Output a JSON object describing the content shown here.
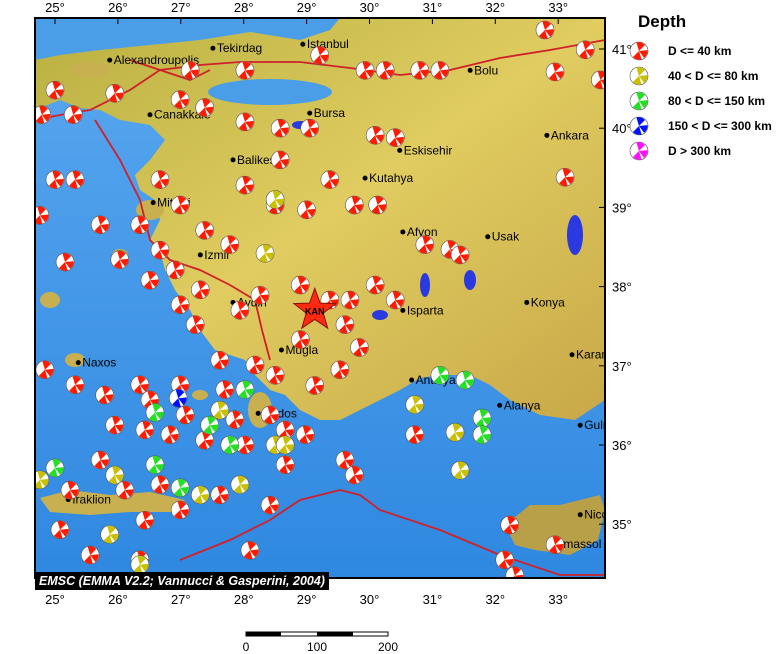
{
  "map": {
    "lon_range": [
      24.68,
      33.74
    ],
    "lat_range": [
      34.2,
      41.38
    ],
    "lon_ticks": [
      "25°",
      "26°",
      "27°",
      "28°",
      "29°",
      "30°",
      "31°",
      "32°",
      "33°"
    ],
    "lat_ticks": [
      "41°",
      "40°",
      "39°",
      "38°",
      "37°",
      "36°",
      "35°"
    ],
    "land_color": "#d9c45a",
    "sea_color": "#3f9be8",
    "fault_color": "#d0202a",
    "epicenter": {
      "label": "KAN",
      "lon": 29.13,
      "lat": 37.7,
      "color": "#ff2a10"
    },
    "cities": [
      {
        "name": "Alexandroupolis",
        "lon": 25.87,
        "lat": 40.86
      },
      {
        "name": "Tekirdag",
        "lon": 27.51,
        "lat": 41.01
      },
      {
        "name": "Istanbul",
        "lon": 28.94,
        "lat": 41.06
      },
      {
        "name": "Bolu",
        "lon": 31.6,
        "lat": 40.73
      },
      {
        "name": "Canakkale",
        "lon": 26.51,
        "lat": 40.17
      },
      {
        "name": "Bursa",
        "lon": 29.05,
        "lat": 40.19
      },
      {
        "name": "Eskisehir",
        "lon": 30.48,
        "lat": 39.72
      },
      {
        "name": "Ankara",
        "lon": 32.82,
        "lat": 39.91
      },
      {
        "name": "Balikesir",
        "lon": 27.83,
        "lat": 39.6
      },
      {
        "name": "Kutahya",
        "lon": 29.93,
        "lat": 39.37
      },
      {
        "name": "Mitilini",
        "lon": 26.56,
        "lat": 39.06
      },
      {
        "name": "Izmir",
        "lon": 27.31,
        "lat": 38.4
      },
      {
        "name": "Afyon",
        "lon": 30.53,
        "lat": 38.69
      },
      {
        "name": "Usak",
        "lon": 31.88,
        "lat": 38.63
      },
      {
        "name": "Aydin",
        "lon": 27.83,
        "lat": 37.8
      },
      {
        "name": "Isparta",
        "lon": 30.53,
        "lat": 37.7
      },
      {
        "name": "Konya",
        "lon": 32.5,
        "lat": 37.8
      },
      {
        "name": "Mugla",
        "lon": 28.6,
        "lat": 37.2
      },
      {
        "name": "Naxos",
        "lon": 25.37,
        "lat": 37.04
      },
      {
        "name": "Karaman",
        "lon": 33.22,
        "lat": 37.14
      },
      {
        "name": "Antalya",
        "lon": 30.67,
        "lat": 36.82
      },
      {
        "name": "Alanya",
        "lon": 32.07,
        "lat": 36.5
      },
      {
        "name": "Gulnar",
        "lon": 33.35,
        "lat": 36.25
      },
      {
        "name": "Rodos",
        "lon": 28.23,
        "lat": 36.4
      },
      {
        "name": "Iraklion",
        "lon": 25.21,
        "lat": 35.31
      },
      {
        "name": "Nicosia",
        "lon": 33.35,
        "lat": 35.12
      },
      {
        "name": "Limassol",
        "lon": 32.87,
        "lat": 34.75
      }
    ],
    "events": [
      [
        24.79,
        40.17,
        0
      ],
      [
        25.29,
        40.17,
        0
      ],
      [
        25.0,
        40.48,
        0
      ],
      [
        25.95,
        40.44,
        0
      ],
      [
        27.15,
        40.73,
        0
      ],
      [
        28.02,
        40.73,
        0
      ],
      [
        29.21,
        40.92,
        0
      ],
      [
        29.93,
        40.73,
        0
      ],
      [
        30.25,
        40.73,
        0
      ],
      [
        30.8,
        40.73,
        0
      ],
      [
        31.12,
        40.73,
        0
      ],
      [
        32.79,
        41.24,
        0
      ],
      [
        32.95,
        40.71,
        0
      ],
      [
        33.43,
        40.99,
        0
      ],
      [
        26.99,
        40.36,
        0
      ],
      [
        27.38,
        40.26,
        0
      ],
      [
        28.02,
        40.08,
        0
      ],
      [
        28.58,
        40.0,
        0
      ],
      [
        29.05,
        40.0,
        0
      ],
      [
        30.09,
        39.91,
        0
      ],
      [
        30.41,
        39.88,
        0
      ],
      [
        28.58,
        39.6,
        0
      ],
      [
        28.02,
        39.28,
        0
      ],
      [
        29.37,
        39.35,
        0
      ],
      [
        29.76,
        39.03,
        0
      ],
      [
        30.13,
        39.03,
        0
      ],
      [
        29.0,
        38.97,
        0
      ],
      [
        28.5,
        39.03,
        0
      ],
      [
        25.0,
        39.35,
        0
      ],
      [
        25.32,
        39.35,
        0
      ],
      [
        24.76,
        38.9,
        0
      ],
      [
        25.72,
        38.78,
        0
      ],
      [
        26.67,
        39.35,
        0
      ],
      [
        26.35,
        38.78,
        0
      ],
      [
        26.99,
        39.03,
        0
      ],
      [
        27.38,
        38.71,
        0
      ],
      [
        26.67,
        38.46,
        0
      ],
      [
        27.78,
        38.53,
        0
      ],
      [
        25.16,
        38.31,
        0
      ],
      [
        26.03,
        38.34,
        0
      ],
      [
        26.51,
        38.08,
        0
      ],
      [
        26.91,
        38.21,
        0
      ],
      [
        27.31,
        37.96,
        0
      ],
      [
        28.26,
        37.89,
        0
      ],
      [
        28.9,
        38.02,
        0
      ],
      [
        29.37,
        37.83,
        0
      ],
      [
        29.69,
        37.83,
        0
      ],
      [
        30.09,
        38.02,
        0
      ],
      [
        30.41,
        37.83,
        0
      ],
      [
        30.88,
        38.53,
        0
      ],
      [
        31.28,
        38.47,
        0
      ],
      [
        31.44,
        38.4,
        0
      ],
      [
        33.11,
        39.38,
        0
      ],
      [
        26.99,
        37.77,
        0
      ],
      [
        27.23,
        37.52,
        0
      ],
      [
        27.94,
        37.7,
        0
      ],
      [
        29.61,
        37.52,
        0
      ],
      [
        29.84,
        37.23,
        0
      ],
      [
        28.9,
        37.33,
        0
      ],
      [
        27.62,
        37.07,
        0
      ],
      [
        28.18,
        37.01,
        0
      ],
      [
        28.5,
        36.88,
        0
      ],
      [
        29.13,
        36.75,
        0
      ],
      [
        29.53,
        36.95,
        0
      ],
      [
        26.99,
        36.76,
        0
      ],
      [
        26.35,
        36.76,
        0
      ],
      [
        25.79,
        36.63,
        0
      ],
      [
        24.84,
        36.95,
        0
      ],
      [
        25.32,
        36.76,
        0
      ],
      [
        26.51,
        36.57,
        0
      ],
      [
        27.07,
        36.38,
        0
      ],
      [
        27.7,
        36.7,
        0
      ],
      [
        27.86,
        36.32,
        0
      ],
      [
        28.42,
        36.38,
        0
      ],
      [
        28.66,
        36.19,
        0
      ],
      [
        28.98,
        36.13,
        0
      ],
      [
        28.02,
        36.0,
        0
      ],
      [
        27.38,
        36.06,
        0
      ],
      [
        26.83,
        36.13,
        0
      ],
      [
        26.43,
        36.19,
        0
      ],
      [
        25.95,
        36.25,
        0
      ],
      [
        25.72,
        35.81,
        0
      ],
      [
        25.24,
        35.43,
        0
      ],
      [
        26.11,
        35.43,
        0
      ],
      [
        26.67,
        35.5,
        0
      ],
      [
        26.99,
        35.18,
        0
      ],
      [
        26.43,
        35.05,
        0
      ],
      [
        27.62,
        35.37,
        0
      ],
      [
        28.42,
        35.24,
        0
      ],
      [
        28.1,
        34.67,
        0
      ],
      [
        25.08,
        34.93,
        0
      ],
      [
        25.56,
        34.61,
        0
      ],
      [
        26.35,
        34.55,
        0
      ],
      [
        29.61,
        35.81,
        0
      ],
      [
        29.76,
        35.62,
        0
      ],
      [
        28.66,
        35.75,
        0
      ],
      [
        32.23,
        34.99,
        0
      ],
      [
        32.15,
        34.55,
        0
      ],
      [
        32.31,
        34.35,
        0
      ],
      [
        30.72,
        36.13,
        0
      ],
      [
        32.95,
        34.74,
        0
      ],
      [
        33.67,
        40.61,
        0
      ],
      [
        28.5,
        39.1,
        1
      ],
      [
        28.34,
        38.42,
        1
      ],
      [
        27.62,
        36.44,
        1
      ],
      [
        28.5,
        36.0,
        1
      ],
      [
        27.94,
        35.5,
        1
      ],
      [
        30.72,
        36.51,
        1
      ],
      [
        31.44,
        35.68,
        1
      ],
      [
        31.36,
        36.16,
        1
      ],
      [
        24.76,
        35.56,
        1
      ],
      [
        25.95,
        35.62,
        1
      ],
      [
        25.87,
        34.87,
        1
      ],
      [
        26.35,
        34.49,
        1
      ],
      [
        27.31,
        35.37,
        1
      ],
      [
        28.66,
        36.0,
        1
      ],
      [
        25.0,
        35.71,
        2
      ],
      [
        26.99,
        35.46,
        2
      ],
      [
        26.59,
        35.75,
        2
      ],
      [
        31.12,
        36.88,
        2
      ],
      [
        31.52,
        36.82,
        2
      ],
      [
        31.79,
        36.34,
        2
      ],
      [
        31.79,
        36.13,
        2
      ],
      [
        27.46,
        36.25,
        2
      ],
      [
        27.78,
        36.0,
        2
      ],
      [
        28.02,
        36.7,
        2
      ],
      [
        26.59,
        36.41,
        2
      ],
      [
        26.96,
        36.59,
        3
      ]
    ]
  },
  "legend": {
    "title": "Depth",
    "items": [
      {
        "label": "D <= 40 km",
        "color": "#ff1a00"
      },
      {
        "label": "40 < D <= 80 km",
        "color": "#c8c000"
      },
      {
        "label": "80 < D <= 150 km",
        "color": "#22e022"
      },
      {
        "label": "150 < D <= 300 km",
        "color": "#0010ff"
      },
      {
        "label": "D > 300 km",
        "color": "#ff10ff"
      }
    ]
  },
  "attribution": "EMSC (EMMA V2.2; Vannucci & Gasperini, 2004)",
  "scale_bar": {
    "labels": [
      "0",
      "100",
      "200"
    ]
  }
}
